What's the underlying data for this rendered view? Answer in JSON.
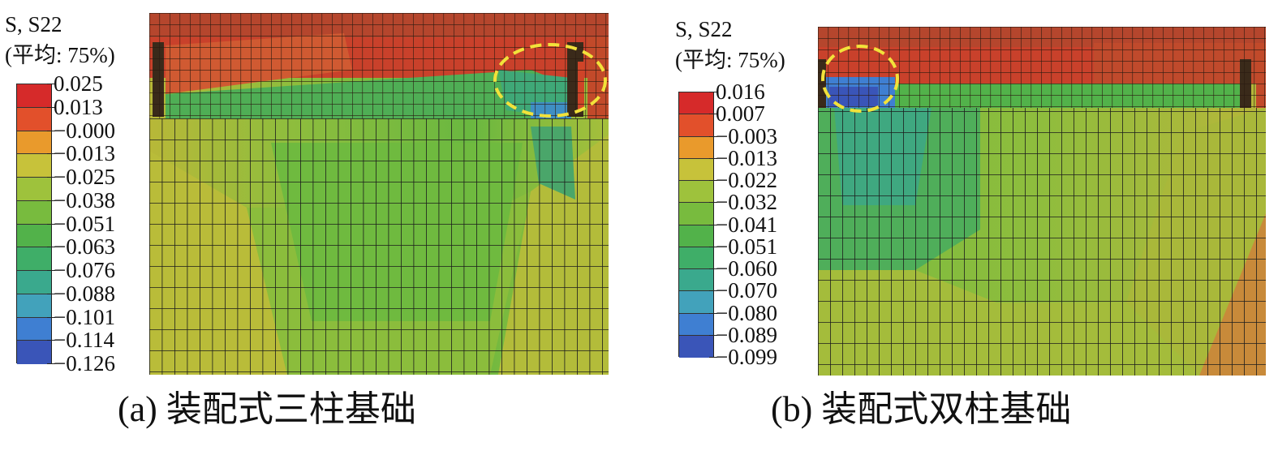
{
  "panel_a": {
    "legend": {
      "title_line1": "S, S22",
      "title_line2": "(平均: 75%)",
      "values": [
        "0.025",
        "0.013",
        "−0.000",
        "−0.013",
        "−0.025",
        "−0.038",
        "−0.051",
        "−0.063",
        "−0.076",
        "−0.088",
        "−0.101",
        "−0.114",
        "−0.126"
      ],
      "colors": [
        "#d62a2a",
        "#e2502b",
        "#e99a2c",
        "#c7c23a",
        "#9ec23c",
        "#78bb3e",
        "#52b24a",
        "#3fae68",
        "#3aa98d",
        "#42a2bb",
        "#3f7fd2",
        "#3a55b8",
        "#2a3a9e"
      ]
    },
    "caption": "(a) 装配式三柱基础",
    "highlight_color": "#f2e23a"
  },
  "panel_b": {
    "legend": {
      "title_line1": "S, S22",
      "title_line2": "(平均: 75%)",
      "values": [
        "0.016",
        "0.007",
        "−0.003",
        "−0.013",
        "−0.022",
        "−0.032",
        "−0.041",
        "−0.051",
        "−0.060",
        "−0.070",
        "−0.080",
        "−0.089",
        "−0.099"
      ],
      "colors": [
        "#d62a2a",
        "#e2502b",
        "#e99a2c",
        "#c7c23a",
        "#9ec23c",
        "#78bb3e",
        "#52b24a",
        "#3fae68",
        "#3aa98d",
        "#42a2bb",
        "#3f7fd2",
        "#3a55b8",
        "#2a3a9e"
      ]
    },
    "caption": "(b) 装配式双柱基础",
    "highlight_color": "#f2e23a"
  }
}
